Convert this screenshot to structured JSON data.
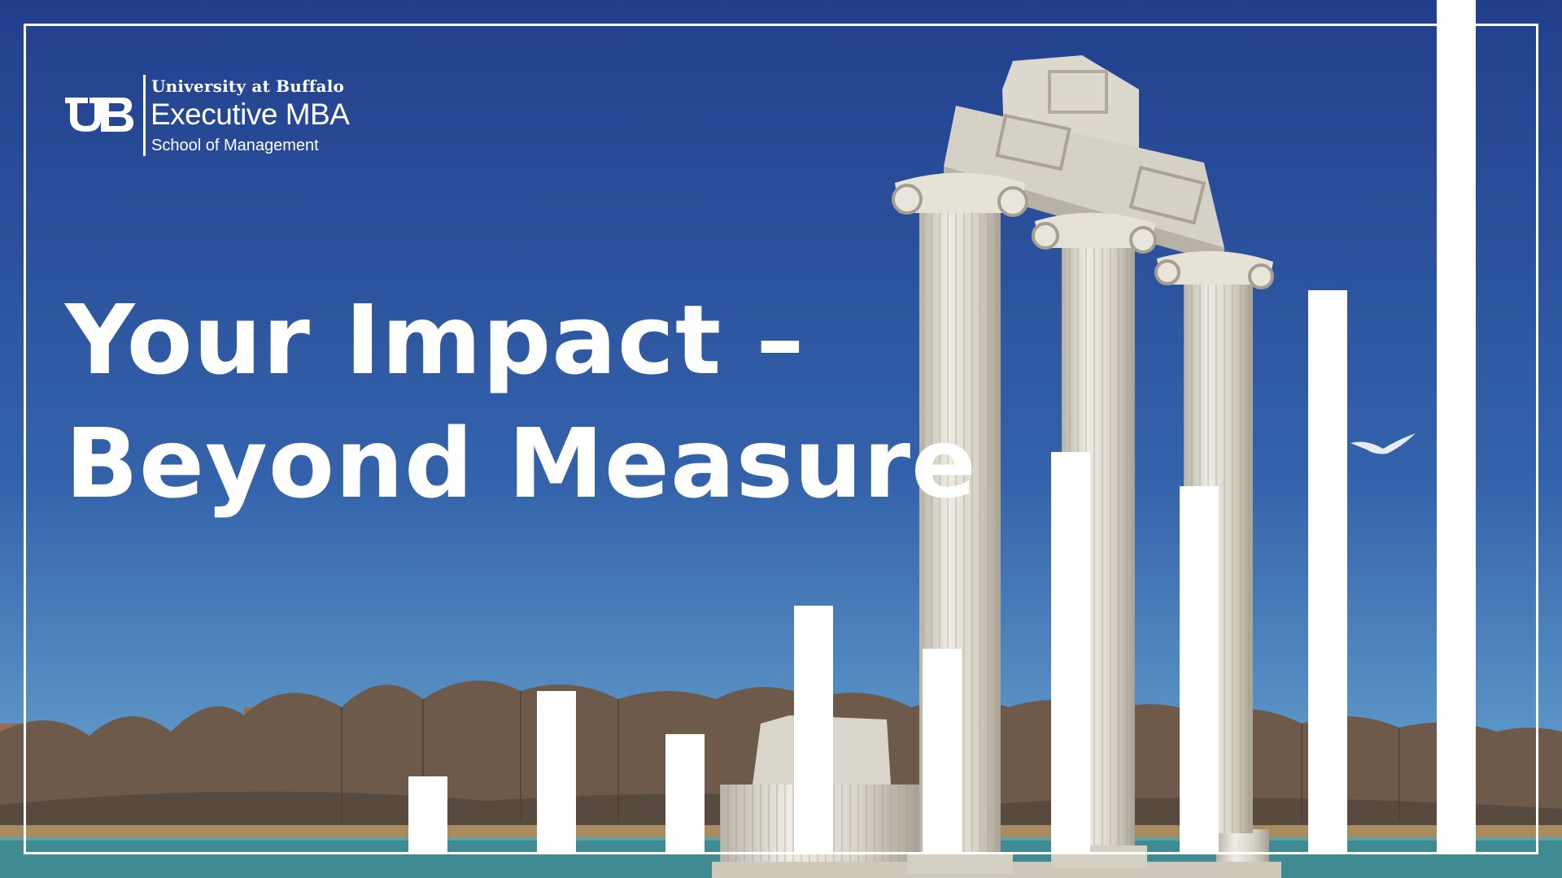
{
  "logo": {
    "icon": "ub-monogram-icon",
    "university": "University at Buffalo",
    "program": "Executive MBA",
    "school": "School of Management"
  },
  "headline": {
    "line1": "Your Impact –",
    "line2": "Beyond Measure"
  },
  "colors": {
    "sky_top": "#1f3f8f",
    "sky_bottom": "#5b93c6",
    "water": "#3f8b91",
    "marble": "#e4e0d6",
    "bars": "#ffffff"
  },
  "decorative_bars": {
    "note_levels": "relative heights of the ascending white bar graphic (0-1)",
    "levels": [
      0.09,
      0.19,
      0.14,
      0.29,
      0.24,
      0.47,
      0.43,
      0.66,
      1.0
    ]
  }
}
